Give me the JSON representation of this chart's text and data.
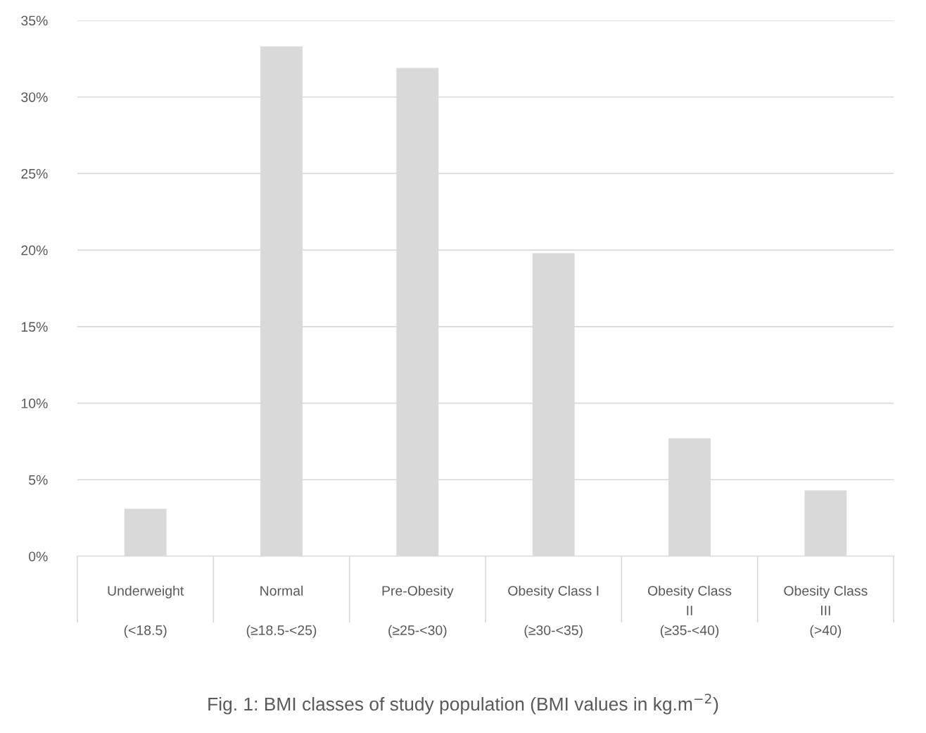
{
  "chart_data": {
    "type": "bar",
    "categories": [
      "Underweight\n\n(<18.5)",
      "Normal\n\n(≥18.5-<25)",
      "Pre-Obesity\n\n(≥25-<30)",
      "Obesity Class I\n\n(≥30-<35)",
      "Obesity Class\nII\n(≥35-<40)",
      "Obesity Class\nIII\n(>40)"
    ],
    "values": [
      3.1,
      33.3,
      31.9,
      19.8,
      7.7,
      4.3
    ],
    "color": "#d9d9d9",
    "ylim": [
      0,
      35
    ],
    "yticks": [
      {
        "value": 0,
        "label": "0%"
      },
      {
        "value": 5,
        "label": "5%"
      },
      {
        "value": 10,
        "label": "10%"
      },
      {
        "value": 15,
        "label": "15%"
      },
      {
        "value": 20,
        "label": "20%"
      },
      {
        "value": 25,
        "label": "25%"
      },
      {
        "value": 30,
        "label": "30%"
      },
      {
        "value": 35,
        "label": "35%"
      }
    ],
    "grid": "y",
    "legend": false,
    "annotations": [
      "Fig. 1: BMI classes of study population (BMI values in kg.m$^{−2}$)"
    ]
  }
}
